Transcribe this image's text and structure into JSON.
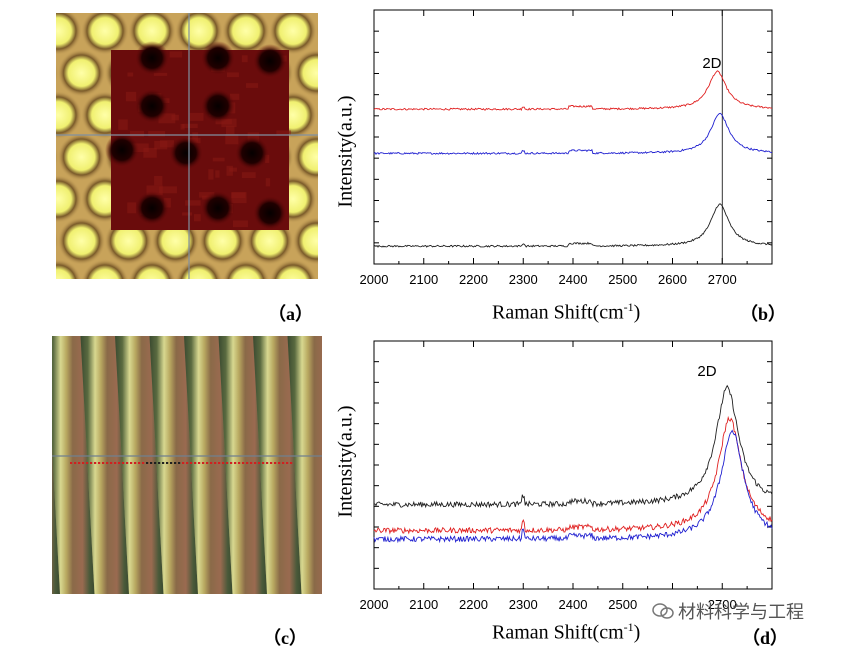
{
  "captions": {
    "a": "（a）",
    "b": "（b）",
    "c": "（c）",
    "d": "（d）"
  },
  "watermark": {
    "text": "材料科学与工程",
    "icon": "wechat-icon"
  },
  "chart_data": [
    {
      "id": "b",
      "type": "line",
      "xlabel_main": "Raman Shift(cm",
      "xlabel_sup": "-1",
      "xlabel_end": ")",
      "ylabel": "Intensity(a.u.)",
      "xlim": [
        2000,
        2800
      ],
      "xticks": [
        2000,
        2100,
        2200,
        2300,
        2400,
        2500,
        2600,
        2700
      ],
      "annotation": {
        "text": "2D",
        "x": 2660
      },
      "vline": 2700,
      "series": [
        {
          "color": "#e02020",
          "baseline": 0.62,
          "peak_x": 2690,
          "peak_h": 0.17,
          "width": 22
        },
        {
          "color": "#2020d0",
          "baseline": 0.42,
          "peak_x": 2695,
          "peak_h": 0.18,
          "width": 22
        },
        {
          "color": "#202020",
          "baseline": 0.0,
          "peak_x": 2695,
          "peak_h": 0.19,
          "width": 22
        }
      ]
    },
    {
      "id": "d",
      "type": "line",
      "xlabel_main": "Raman Shift(cm",
      "xlabel_sup": "-1",
      "xlabel_end": ")",
      "ylabel": "Intensity(a.u.)",
      "xlim": [
        2000,
        2800
      ],
      "xticks": [
        2000,
        2100,
        2200,
        2300,
        2400,
        2500,
        2600,
        2700
      ],
      "xticklabels": [
        "2000",
        "2100",
        "2200",
        "2300",
        "2400",
        "2500",
        "",
        "2700"
      ],
      "annotation": {
        "text": "2D",
        "x": 2650
      },
      "series": [
        {
          "color": "#202020",
          "baseline": 0.31,
          "peak_x": 2710,
          "peak_h": 0.54,
          "width": 28
        },
        {
          "color": "#e02020",
          "baseline": 0.19,
          "peak_x": 2715,
          "peak_h": 0.52,
          "width": 28
        },
        {
          "color": "#2020d0",
          "baseline": 0.15,
          "peak_x": 2720,
          "peak_h": 0.5,
          "width": 28
        }
      ]
    }
  ]
}
